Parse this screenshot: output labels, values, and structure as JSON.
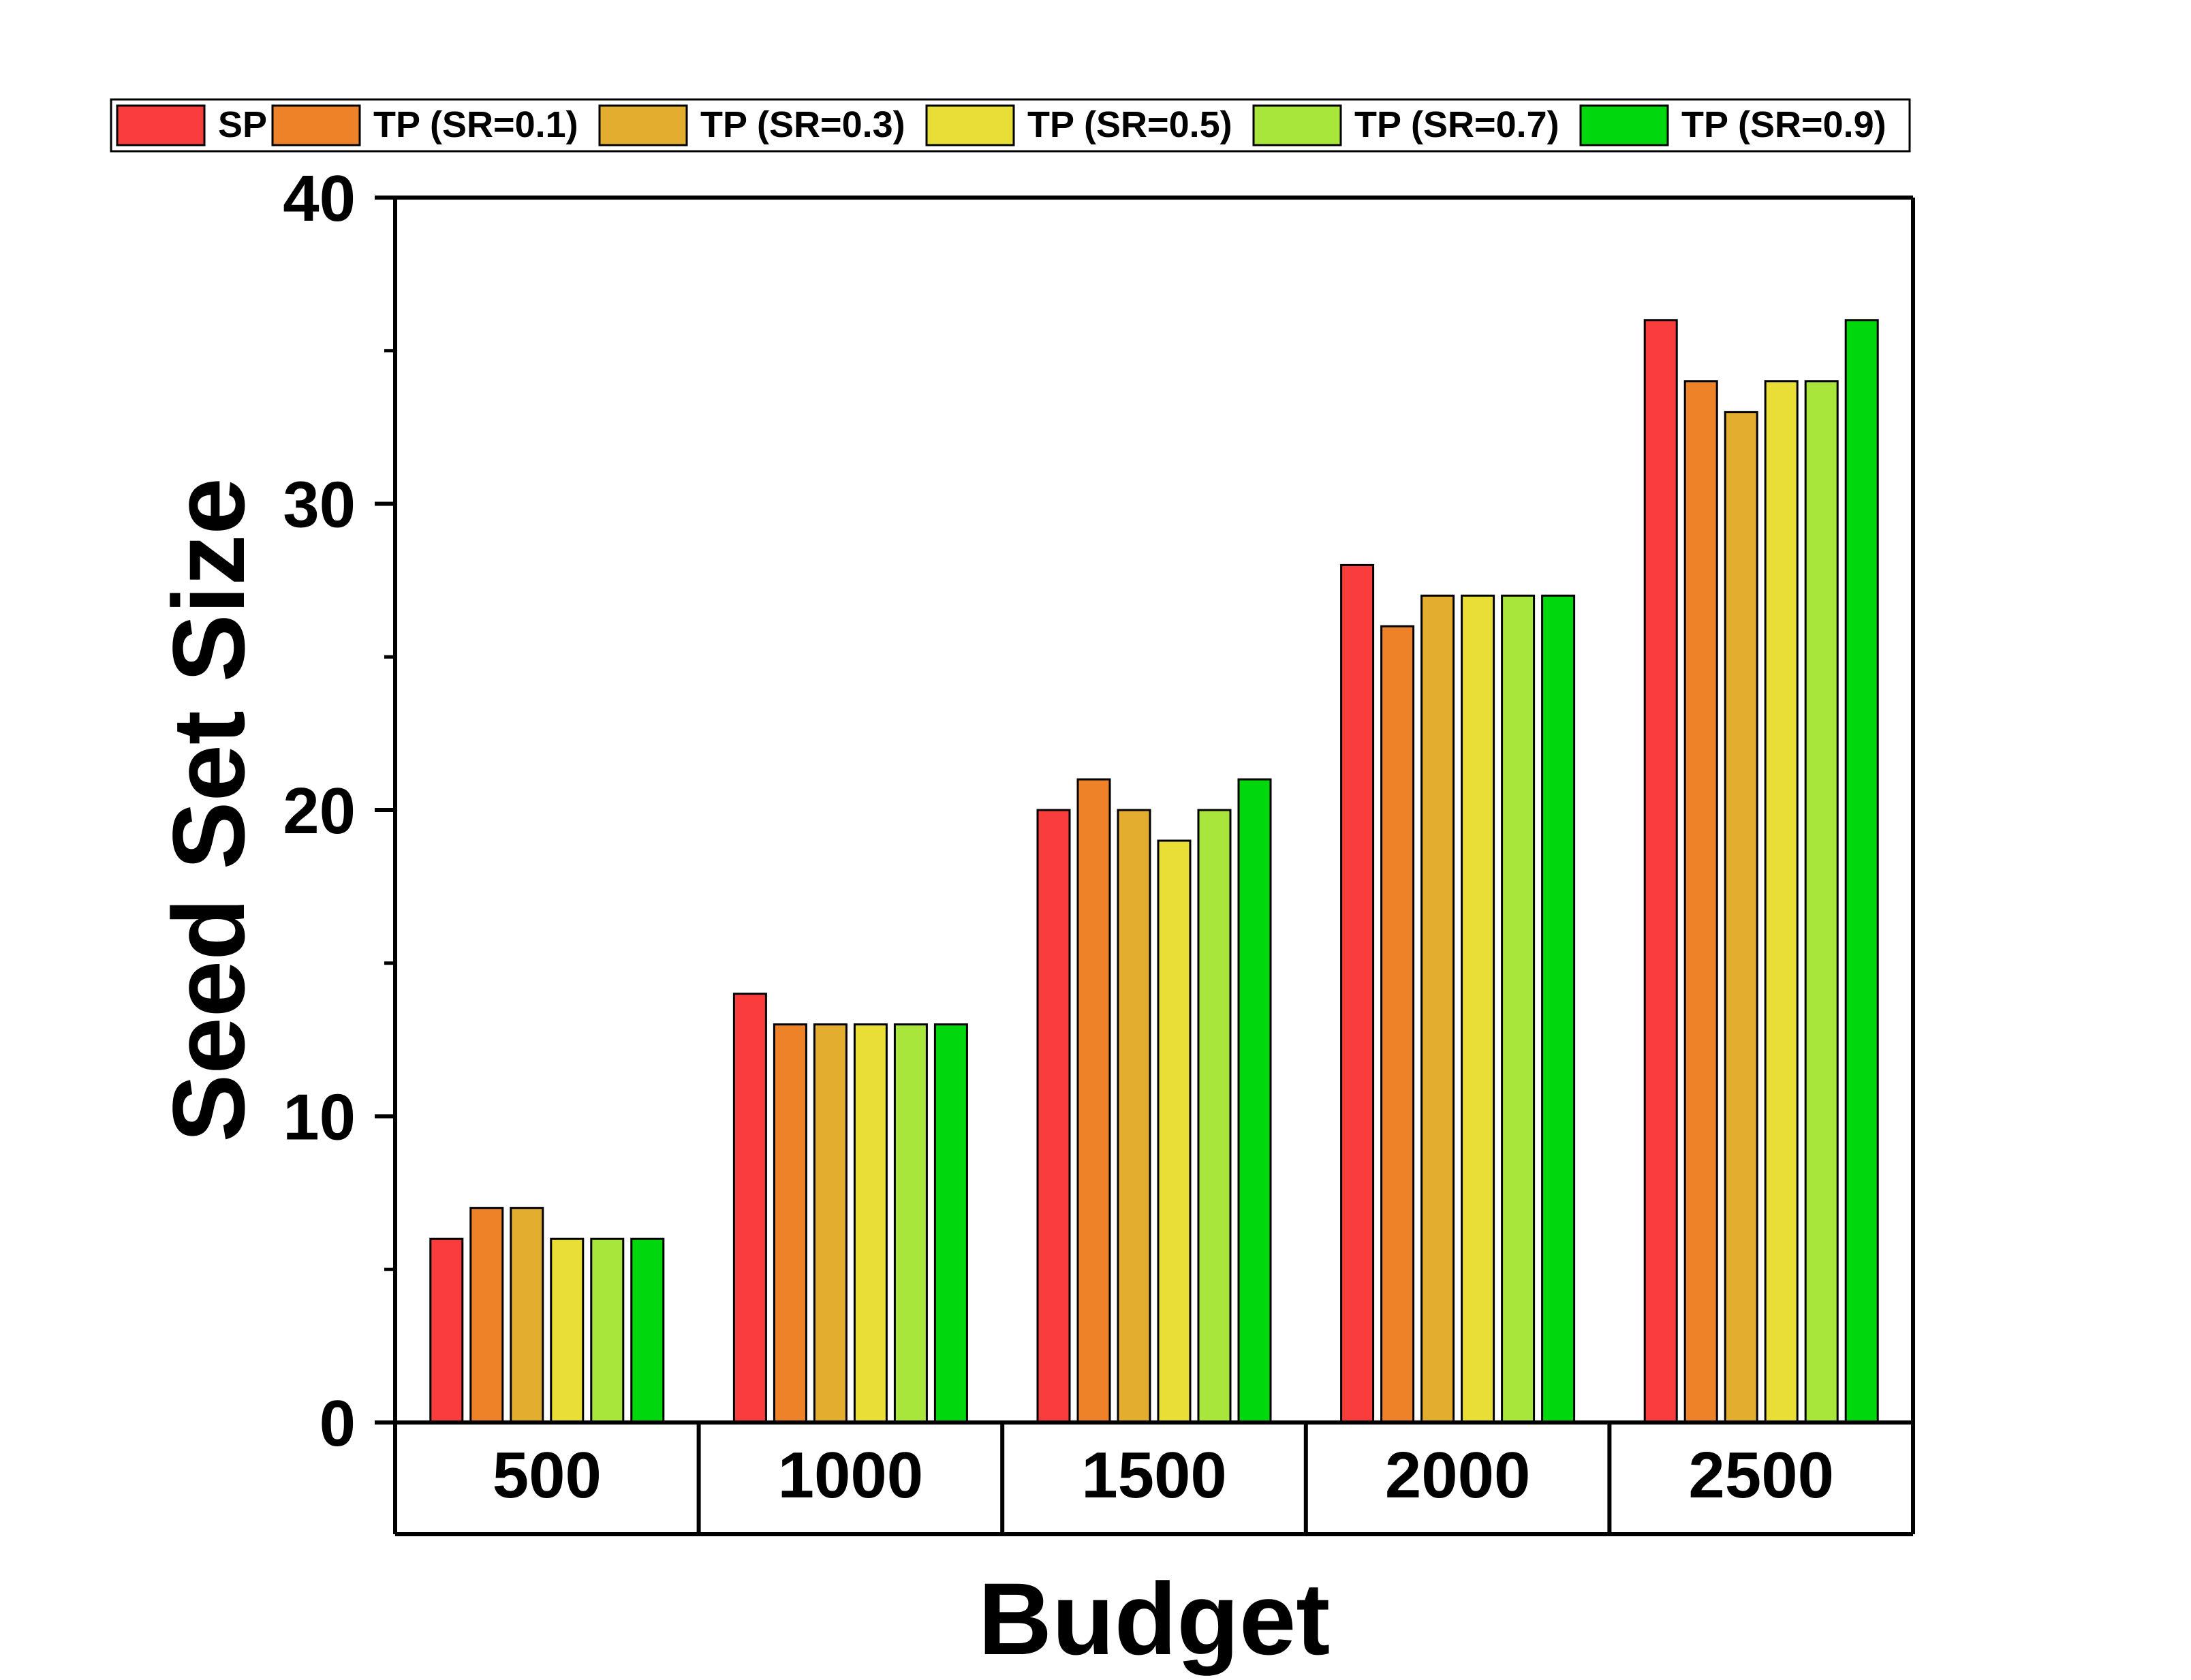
{
  "chart_data": {
    "type": "bar",
    "title": "",
    "xlabel": "Budget",
    "ylabel": "Seed Set Size",
    "ylim": [
      0,
      40
    ],
    "yticks": [
      "0",
      "10",
      "20",
      "30",
      "40"
    ],
    "categories": [
      "500",
      "1000",
      "1500",
      "2000",
      "2500"
    ],
    "legend_position": "top",
    "grid": false,
    "series": [
      {
        "name": "SP",
        "color": "#f93c3c",
        "values": [
          6,
          14,
          20,
          28,
          36
        ]
      },
      {
        "name": "TP (SR=0.1)",
        "color": "#ee8228",
        "values": [
          7,
          13,
          21,
          26,
          34
        ]
      },
      {
        "name": "TP (SR=0.3)",
        "color": "#e3ae2f",
        "values": [
          7,
          13,
          20,
          27,
          33
        ]
      },
      {
        "name": "TP (SR=0.5)",
        "color": "#e8de36",
        "values": [
          6,
          13,
          19,
          27,
          34
        ]
      },
      {
        "name": "TP (SR=0.7)",
        "color": "#a8e63c",
        "values": [
          6,
          13,
          20,
          27,
          34
        ]
      },
      {
        "name": "TP (SR=0.9)",
        "color": "#00d70c",
        "values": [
          6,
          13,
          21,
          27,
          36
        ]
      }
    ]
  }
}
